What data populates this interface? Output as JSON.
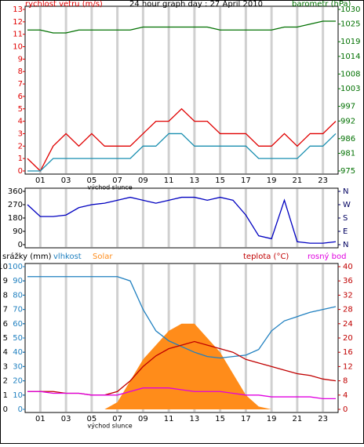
{
  "chart_data": [
    {
      "type": "line",
      "title": "24 hour graph day : 27 April 2010",
      "annotation": "východ slunce",
      "grid": true,
      "x": [
        0,
        1,
        2,
        3,
        4,
        5,
        6,
        7,
        8,
        9,
        10,
        11,
        12,
        13,
        14,
        15,
        16,
        17,
        18,
        19,
        20,
        21,
        22,
        23,
        24
      ],
      "xlim": [
        0,
        24
      ],
      "xticks": [
        {
          "value": 1,
          "label": "01"
        },
        {
          "value": 3,
          "label": "03"
        },
        {
          "value": 5,
          "label": "05"
        },
        {
          "value": 7,
          "label": "07"
        },
        {
          "value": 9,
          "label": "09"
        },
        {
          "value": 11,
          "label": "11"
        },
        {
          "value": 13,
          "label": "13"
        },
        {
          "value": 15,
          "label": "15"
        },
        {
          "value": 17,
          "label": "17"
        },
        {
          "value": 19,
          "label": "19"
        },
        {
          "value": 21,
          "label": "21"
        },
        {
          "value": 23,
          "label": "23"
        }
      ],
      "axes": [
        {
          "label": "rychlost vetru (m/s)",
          "color": "#e00000",
          "side": "left",
          "lim": [
            0,
            13
          ],
          "ticks": [
            0,
            1,
            2,
            3,
            4,
            5,
            6,
            7,
            8,
            9,
            10,
            11,
            12,
            13
          ]
        },
        {
          "label": "barometr (hPa)",
          "color": "#007000",
          "side": "right",
          "lim": [
            975,
            1030
          ],
          "ticks": [
            975,
            981,
            986,
            992,
            997,
            1003,
            1008,
            1014,
            1019,
            1025,
            1030
          ]
        }
      ],
      "series": [
        {
          "color": "#e00000",
          "axis": 0,
          "values": [
            1,
            0,
            2,
            3,
            2,
            3,
            2,
            2,
            2,
            3,
            4,
            4,
            5,
            4,
            4,
            3,
            3,
            3,
            2,
            2,
            3,
            2,
            3,
            3,
            4
          ]
        },
        {
          "color": "#1a8fb0",
          "axis": 0,
          "values": [
            0,
            0,
            1,
            1,
            1,
            1,
            1,
            1,
            1,
            2,
            2,
            3,
            3,
            2,
            2,
            2,
            2,
            2,
            1,
            1,
            1,
            1,
            2,
            2,
            3
          ]
        },
        {
          "color": "#007000",
          "axis": 1,
          "values": [
            1023,
            1023,
            1022,
            1022,
            1023,
            1023,
            1023,
            1023,
            1023,
            1024,
            1024,
            1024,
            1024,
            1024,
            1024,
            1023,
            1023,
            1023,
            1023,
            1023,
            1024,
            1024,
            1025,
            1026,
            1026
          ]
        }
      ]
    },
    {
      "type": "line",
      "grid": true,
      "x": [
        0,
        1,
        2,
        3,
        4,
        5,
        6,
        7,
        8,
        9,
        10,
        11,
        12,
        13,
        14,
        15,
        16,
        17,
        18,
        19,
        20,
        21,
        22,
        23,
        24
      ],
      "xlim": [
        0,
        24
      ],
      "xticks": [
        1,
        3,
        5,
        7,
        9,
        11,
        13,
        15,
        17,
        19,
        21,
        23
      ],
      "axes": [
        {
          "color": "#000000",
          "side": "left",
          "lim": [
            0,
            360
          ],
          "ticks": [
            0,
            90,
            180,
            270,
            360
          ]
        },
        {
          "color": "#000060",
          "side": "right",
          "lim": [
            0,
            360
          ],
          "ticks": [
            {
              "value": 0,
              "label": "N"
            },
            {
              "value": 90,
              "label": "E"
            },
            {
              "value": 180,
              "label": "S"
            },
            {
              "value": 270,
              "label": "W"
            },
            {
              "value": 360,
              "label": "N"
            }
          ]
        }
      ],
      "series": [
        {
          "color": "#0000c0",
          "axis": 0,
          "values": [
            270,
            190,
            190,
            200,
            250,
            270,
            280,
            300,
            320,
            300,
            280,
            300,
            320,
            320,
            300,
            320,
            300,
            200,
            60,
            40,
            300,
            20,
            10,
            10,
            20
          ]
        }
      ]
    },
    {
      "type": "line",
      "annotation": "východ slunce",
      "grid": true,
      "x": [
        0,
        1,
        2,
        3,
        4,
        5,
        6,
        7,
        8,
        9,
        10,
        11,
        12,
        13,
        14,
        15,
        16,
        17,
        18,
        19,
        20,
        21,
        22,
        23,
        24
      ],
      "xlim": [
        0,
        24
      ],
      "xticks": [
        {
          "value": 1,
          "label": "01"
        },
        {
          "value": 3,
          "label": "03"
        },
        {
          "value": 5,
          "label": "05"
        },
        {
          "value": 7,
          "label": "07"
        },
        {
          "value": 9,
          "label": "09"
        },
        {
          "value": 11,
          "label": "11"
        },
        {
          "value": 13,
          "label": "13"
        },
        {
          "value": 15,
          "label": "15"
        },
        {
          "value": 17,
          "label": "17"
        },
        {
          "value": 19,
          "label": "19"
        },
        {
          "value": 21,
          "label": "21"
        },
        {
          "value": 23,
          "label": "23"
        }
      ],
      "axes": [
        {
          "label": "srážky (mm)",
          "color": "#000000",
          "side": "left",
          "lim": [
            0,
            10
          ],
          "ticks": [
            0,
            1,
            2,
            3,
            4,
            5,
            6,
            7,
            8,
            9,
            10
          ]
        },
        {
          "label": "vlhkost",
          "color": "#2080c0",
          "side": "left",
          "lim": [
            0,
            100
          ],
          "ticks": [
            0,
            10,
            20,
            30,
            40,
            50,
            60,
            70,
            80,
            90,
            100
          ]
        },
        {
          "label": "teplota (°C)",
          "color": "#c00000",
          "side": "right",
          "lim": [
            0,
            40
          ],
          "ticks": [
            0,
            4,
            8,
            12,
            16,
            20,
            24,
            28,
            32,
            36,
            40
          ]
        }
      ],
      "legend": [
        {
          "label": "Solar",
          "color": "#ff8c1a"
        },
        {
          "label": "rosný bod",
          "color": "#e000e0"
        }
      ],
      "series": [
        {
          "color": "#ff8c1a",
          "axis": 1,
          "area": true,
          "values": [
            0,
            0,
            0,
            0,
            0,
            0,
            0,
            5,
            20,
            35,
            45,
            55,
            60,
            60,
            50,
            40,
            25,
            10,
            2,
            0,
            0,
            0,
            0,
            0,
            0
          ]
        },
        {
          "color": "#2080c0",
          "axis": 1,
          "values": [
            93,
            93,
            93,
            93,
            93,
            93,
            93,
            93,
            90,
            70,
            55,
            48,
            44,
            40,
            37,
            36,
            37,
            38,
            42,
            55,
            62,
            65,
            68,
            70,
            72
          ]
        },
        {
          "color": "#c00000",
          "axis": 2,
          "values": [
            5,
            5,
            5,
            4.5,
            4.5,
            4,
            4,
            5,
            8,
            12,
            15,
            17,
            18,
            19,
            18,
            17,
            16,
            14,
            13,
            12,
            11,
            10,
            9.5,
            8.5,
            8
          ]
        },
        {
          "color": "#e000e0",
          "axis": 2,
          "values": [
            5,
            5,
            4.5,
            4.5,
            4.5,
            4,
            4,
            4,
            5,
            6,
            6,
            6,
            5.5,
            5,
            5,
            5,
            4.5,
            4,
            4,
            3.5,
            3.5,
            3.5,
            3.5,
            3,
            3
          ]
        }
      ]
    }
  ]
}
